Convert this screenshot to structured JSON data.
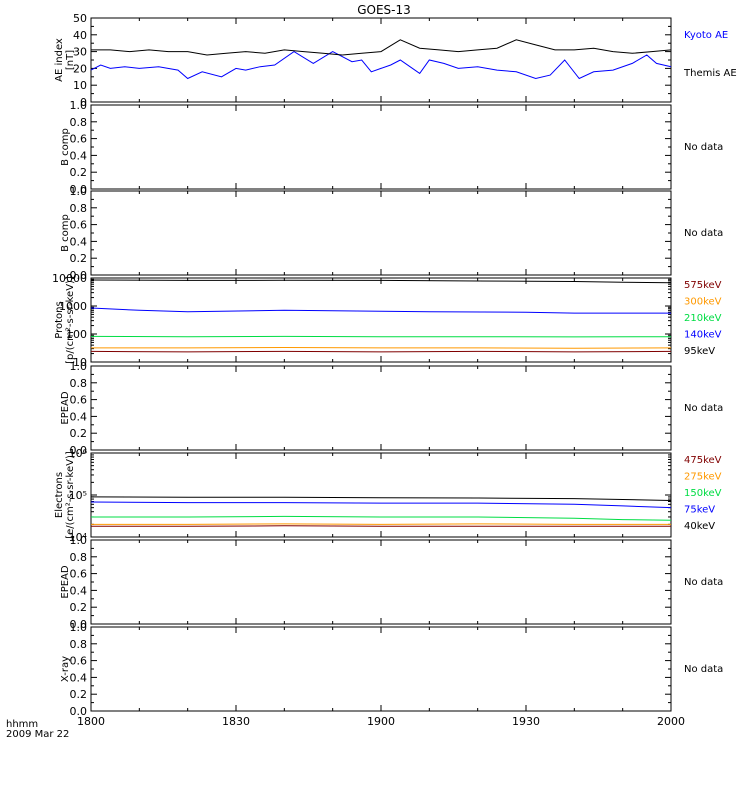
{
  "title": "GOES-13",
  "x_axis": {
    "label_line1": "hhmm",
    "label_line2": "2009 Mar 22",
    "ticks": [
      "1800",
      "1830",
      "1900",
      "1930",
      "2000"
    ]
  },
  "no_data_text": "No data",
  "chart_data": [
    {
      "type": "line",
      "ylabel": [
        "AE index",
        "[nT]"
      ],
      "ylim": [
        0,
        50
      ],
      "y_ticks": [
        "0",
        "10",
        "20",
        "30",
        "40",
        "50"
      ],
      "x_range": [
        0,
        120
      ],
      "series": [
        {
          "name": "Kyoto AE",
          "color": "#0000ff",
          "x": [
            0,
            2,
            4,
            7,
            10,
            14,
            18,
            20,
            23,
            27,
            30,
            32,
            35,
            38,
            42,
            46,
            50,
            54,
            56,
            58,
            60,
            62,
            64,
            66,
            68,
            70,
            73,
            76,
            80,
            84,
            88,
            92,
            95,
            98,
            101,
            104,
            108,
            112,
            115,
            117,
            120
          ],
          "y": [
            19,
            22,
            20,
            21,
            20,
            21,
            19,
            14,
            18,
            15,
            20,
            19,
            21,
            22,
            30,
            23,
            30,
            24,
            25,
            18,
            20,
            22,
            25,
            21,
            17,
            25,
            23,
            20,
            21,
            19,
            18,
            14,
            16,
            25,
            14,
            18,
            19,
            23,
            28,
            23,
            21
          ]
        },
        {
          "name": "Themis AE",
          "color": "#000000",
          "x": [
            0,
            4,
            8,
            12,
            16,
            20,
            24,
            28,
            32,
            36,
            40,
            44,
            48,
            52,
            56,
            60,
            64,
            68,
            72,
            76,
            80,
            84,
            88,
            92,
            96,
            100,
            104,
            108,
            112,
            116,
            120
          ],
          "y": [
            31,
            31,
            30,
            31,
            30,
            30,
            28,
            29,
            30,
            29,
            31,
            30,
            29,
            28,
            29,
            30,
            37,
            32,
            31,
            30,
            31,
            32,
            37,
            34,
            31,
            31,
            32,
            30,
            29,
            30,
            31
          ]
        }
      ]
    },
    {
      "type": "line",
      "ylabel": [
        "B comp"
      ],
      "ylim": [
        0,
        1
      ],
      "y_ticks": [
        "0.0",
        "0.2",
        "0.4",
        "0.6",
        "0.8",
        "1.0"
      ],
      "series": [],
      "status": "No data"
    },
    {
      "type": "line",
      "ylabel": [
        "B comp"
      ],
      "ylim": [
        0,
        1
      ],
      "y_ticks": [
        "0.0",
        "0.2",
        "0.4",
        "0.6",
        "0.8",
        "1.0"
      ],
      "series": [],
      "status": "No data"
    },
    {
      "type": "line",
      "ylabel": [
        "Protons",
        "[p/(cm²-s-sr-keV)]"
      ],
      "yscale": "log",
      "ylim": [
        10,
        10000
      ],
      "y_ticks": [
        "10",
        "100",
        "1000",
        "10000"
      ],
      "series": [
        {
          "name": "575keV",
          "color": "#800000",
          "x": [
            0,
            20,
            40,
            60,
            80,
            100,
            120
          ],
          "y": [
            24,
            23,
            24,
            23,
            24,
            23,
            24
          ]
        },
        {
          "name": "300keV",
          "color": "#ff9900",
          "x": [
            0,
            20,
            40,
            60,
            80,
            100,
            120
          ],
          "y": [
            32,
            32,
            33,
            32,
            32,
            31,
            32
          ]
        },
        {
          "name": "210keV",
          "color": "#00dd44",
          "x": [
            0,
            20,
            40,
            60,
            80,
            100,
            120
          ],
          "y": [
            82,
            80,
            82,
            80,
            80,
            79,
            80
          ]
        },
        {
          "name": "140keV",
          "color": "#0000ff",
          "x": [
            0,
            10,
            20,
            40,
            60,
            70,
            90,
            100,
            110,
            120
          ],
          "y": [
            850,
            700,
            620,
            700,
            650,
            620,
            600,
            560,
            560,
            560
          ]
        },
        {
          "name": "95keV",
          "color": "#000000",
          "x": [
            0,
            20,
            40,
            60,
            80,
            100,
            110,
            120
          ],
          "y": [
            8500,
            8200,
            8300,
            8200,
            7800,
            7500,
            7000,
            6800
          ]
        }
      ]
    },
    {
      "type": "line",
      "ylabel": [
        "EPEAD"
      ],
      "ylim": [
        0,
        1
      ],
      "y_ticks": [
        "0.0",
        "0.2",
        "0.4",
        "0.6",
        "0.8",
        "1.0"
      ],
      "series": [],
      "status": "No data"
    },
    {
      "type": "line",
      "ylabel": [
        "Electrons",
        "[e/(cm²-s-sr-keV)]"
      ],
      "yscale": "log",
      "ylim": [
        10000,
        1000000
      ],
      "y_ticks": [
        "10⁴",
        "10⁵",
        "10⁶"
      ],
      "series": [
        {
          "name": "475keV",
          "color": "#800000",
          "x": [
            0,
            20,
            40,
            60,
            80,
            100,
            120
          ],
          "y": [
            18000,
            18000,
            18500,
            18000,
            18000,
            18000,
            18000
          ]
        },
        {
          "name": "275keV",
          "color": "#ff9900",
          "x": [
            0,
            20,
            40,
            60,
            80,
            100,
            120
          ],
          "y": [
            20000,
            20000,
            20500,
            20000,
            20500,
            20000,
            20000
          ]
        },
        {
          "name": "150keV",
          "color": "#00dd44",
          "x": [
            0,
            20,
            40,
            60,
            80,
            100,
            110,
            120
          ],
          "y": [
            30000,
            30000,
            31000,
            30000,
            30000,
            28000,
            26000,
            25000
          ]
        },
        {
          "name": "75keV",
          "color": "#0000ff",
          "x": [
            0,
            20,
            40,
            60,
            80,
            100,
            110,
            120
          ],
          "y": [
            68000,
            66000,
            66000,
            64000,
            64000,
            60000,
            55000,
            50000
          ]
        },
        {
          "name": "40keV",
          "color": "#000000",
          "x": [
            0,
            20,
            40,
            60,
            80,
            100,
            110,
            120
          ],
          "y": [
            90000,
            88000,
            88000,
            86000,
            85000,
            82000,
            78000,
            74000
          ]
        }
      ]
    },
    {
      "type": "line",
      "ylabel": [
        "EPEAD"
      ],
      "ylim": [
        0,
        1
      ],
      "y_ticks": [
        "0.0",
        "0.2",
        "0.4",
        "0.6",
        "0.8",
        "1.0"
      ],
      "series": [],
      "status": "No data"
    },
    {
      "type": "line",
      "ylabel": [
        "X-ray"
      ],
      "ylim": [
        0,
        1
      ],
      "y_ticks": [
        "0.0",
        "0.2",
        "0.4",
        "0.6",
        "0.8",
        "1.0"
      ],
      "series": [],
      "status": "No data"
    }
  ]
}
